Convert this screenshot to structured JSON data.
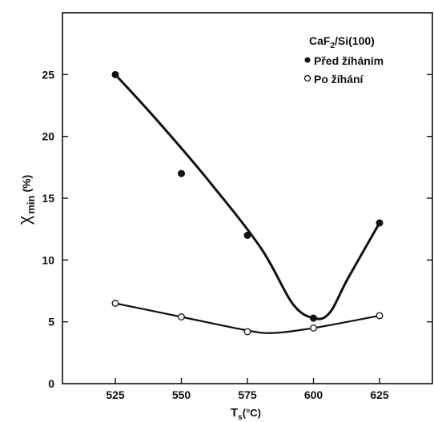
{
  "chart_data": {
    "type": "line",
    "xlabel": "T",
    "xlabel_sub": "s",
    "xlabel_unit": "(°C)",
    "ylabel": "χ",
    "ylabel_sub": "min",
    "ylabel_unit": "(%)",
    "xlim": [
      505,
      645
    ],
    "ylim": [
      0,
      30
    ],
    "x_ticks": [
      525,
      550,
      575,
      600,
      625
    ],
    "y_ticks": [
      0,
      5,
      10,
      15,
      20,
      25
    ],
    "grid": false,
    "legend_position": "top-right",
    "legend_title": "CaF",
    "legend_title_sub": "2",
    "legend_title_rest": "/Si(100)",
    "series": [
      {
        "name": "Před žíháním",
        "marker": "filled-circle",
        "x": [
          525,
          550,
          575,
          600,
          625
        ],
        "y": [
          25,
          17,
          12,
          5.3,
          13
        ],
        "curve": [
          [
            525,
            25
          ],
          [
            540,
            21.5
          ],
          [
            560,
            16.5
          ],
          [
            580,
            11
          ],
          [
            592,
            6.5
          ],
          [
            600,
            5.3
          ],
          [
            606,
            5.7
          ],
          [
            613,
            8.5
          ],
          [
            625,
            13
          ]
        ]
      },
      {
        "name": "Po žíhání",
        "marker": "open-circle",
        "x": [
          525,
          550,
          575,
          600,
          625
        ],
        "y": [
          6.5,
          5.4,
          4.2,
          4.5,
          5.5
        ],
        "curve": [
          [
            525,
            6.5
          ],
          [
            550,
            5.4
          ],
          [
            575,
            4.3
          ],
          [
            585,
            4.1
          ],
          [
            600,
            4.5
          ],
          [
            625,
            5.5
          ]
        ]
      }
    ]
  }
}
